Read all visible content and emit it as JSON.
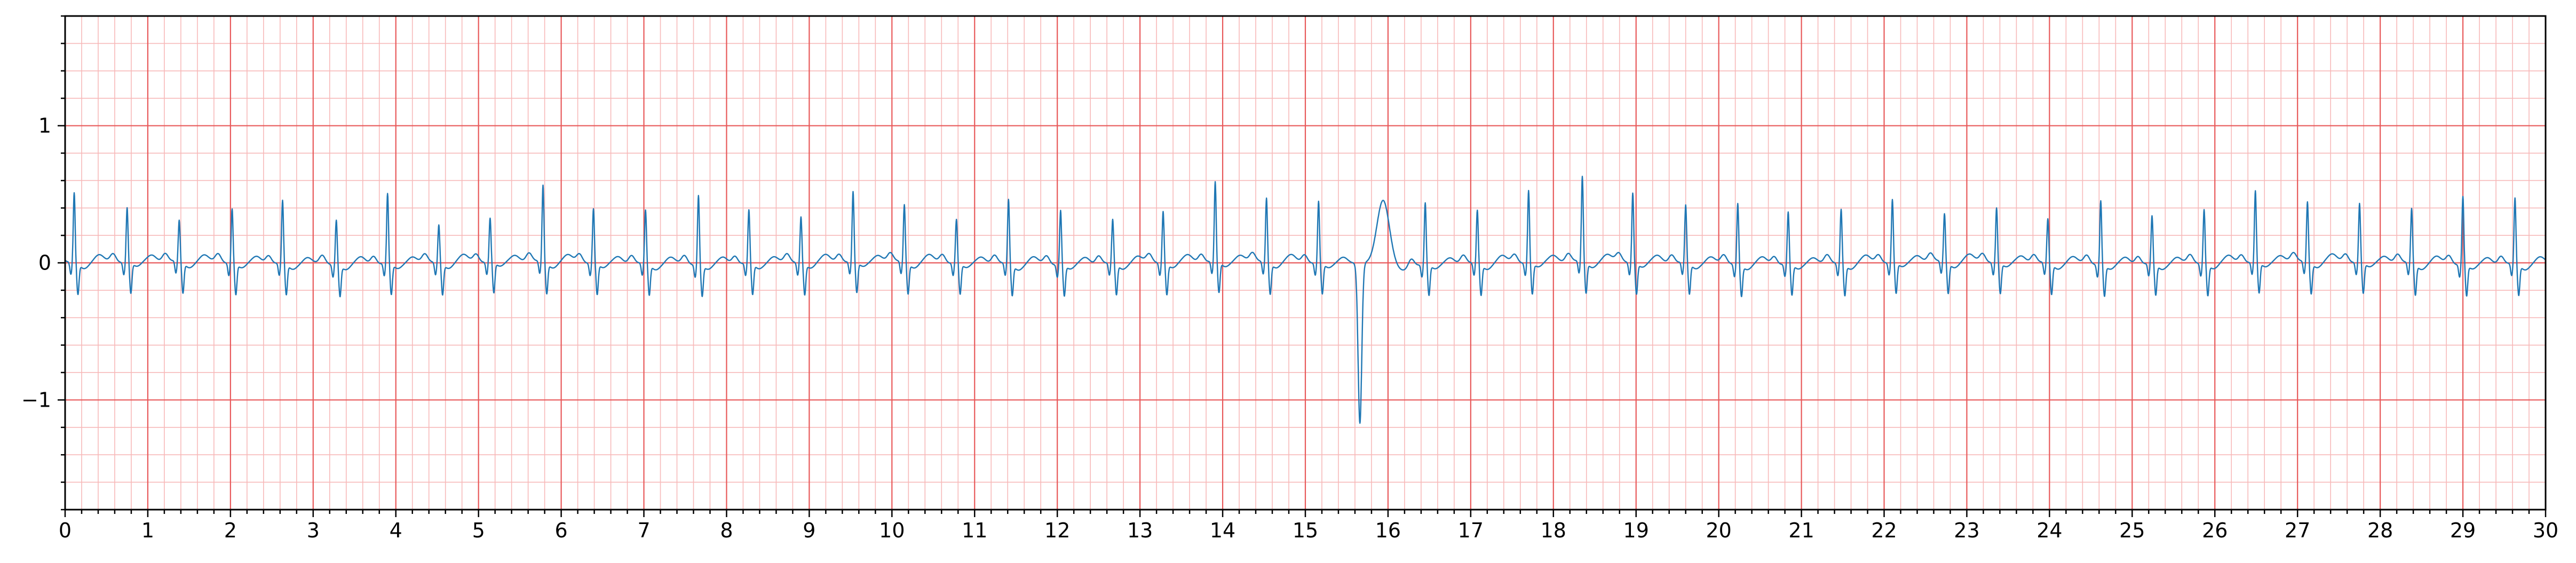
{
  "chart_data": {
    "type": "line",
    "title": "",
    "xlabel": "",
    "ylabel": "",
    "xlim": [
      0,
      30
    ],
    "ylim": [
      -1.8,
      1.8
    ],
    "x_ticks": [
      "0",
      "1",
      "2",
      "3",
      "4",
      "5",
      "6",
      "7",
      "8",
      "9",
      "10",
      "11",
      "12",
      "13",
      "14",
      "15",
      "16",
      "17",
      "18",
      "19",
      "20",
      "21",
      "22",
      "23",
      "24",
      "25",
      "26",
      "27",
      "28",
      "29",
      "30"
    ],
    "y_ticks": [
      {
        "value": 1,
        "label": "1"
      },
      {
        "value": 0,
        "label": "0"
      },
      {
        "value": -1,
        "label": "−1"
      }
    ],
    "grid": {
      "major": true,
      "minor": true,
      "major_step_x": 1,
      "minor_step_x": 0.2,
      "major_step_y": 1,
      "minor_step_y": 0.2
    },
    "series": [
      {
        "color": "#1f77b4",
        "beats": [
          {
            "t": 0.11,
            "amp": 0.51
          },
          {
            "t": 0.75,
            "amp": 0.4
          },
          {
            "t": 1.38,
            "amp": 0.3
          },
          {
            "t": 2.02,
            "amp": 0.4
          },
          {
            "t": 2.63,
            "amp": 0.46
          },
          {
            "t": 3.28,
            "amp": 0.33
          },
          {
            "t": 3.9,
            "amp": 0.51
          },
          {
            "t": 4.52,
            "amp": 0.28
          },
          {
            "t": 5.14,
            "amp": 0.32
          },
          {
            "t": 5.78,
            "amp": 0.56
          },
          {
            "t": 6.39,
            "amp": 0.4
          },
          {
            "t": 7.02,
            "amp": 0.39
          },
          {
            "t": 7.66,
            "amp": 0.51
          },
          {
            "t": 8.27,
            "amp": 0.39
          },
          {
            "t": 8.9,
            "amp": 0.34
          },
          {
            "t": 9.53,
            "amp": 0.51
          },
          {
            "t": 10.15,
            "amp": 0.42
          },
          {
            "t": 10.78,
            "amp": 0.32
          },
          {
            "t": 11.41,
            "amp": 0.47
          },
          {
            "t": 12.04,
            "amp": 0.4
          },
          {
            "t": 12.67,
            "amp": 0.32
          },
          {
            "t": 13.28,
            "amp": 0.38
          },
          {
            "t": 13.91,
            "amp": 0.58
          },
          {
            "t": 14.53,
            "amp": 0.47
          },
          {
            "t": 15.16,
            "amp": 0.45
          },
          {
            "t": 15.72,
            "amp": 0.47,
            "pvc": true,
            "min": -1.17
          },
          {
            "t": 16.45,
            "amp": 0.45
          },
          {
            "t": 17.08,
            "amp": 0.39
          },
          {
            "t": 17.7,
            "amp": 0.53
          },
          {
            "t": 18.35,
            "amp": 0.62
          },
          {
            "t": 18.96,
            "amp": 0.51
          },
          {
            "t": 19.6,
            "amp": 0.42
          },
          {
            "t": 20.23,
            "amp": 0.45
          },
          {
            "t": 20.84,
            "amp": 0.38
          },
          {
            "t": 21.48,
            "amp": 0.4
          },
          {
            "t": 22.1,
            "amp": 0.46
          },
          {
            "t": 22.73,
            "amp": 0.35
          },
          {
            "t": 23.36,
            "amp": 0.4
          },
          {
            "t": 23.98,
            "amp": 0.32
          },
          {
            "t": 24.62,
            "amp": 0.47
          },
          {
            "t": 25.24,
            "amp": 0.35
          },
          {
            "t": 25.87,
            "amp": 0.4
          },
          {
            "t": 26.49,
            "amp": 0.52
          },
          {
            "t": 27.12,
            "amp": 0.44
          },
          {
            "t": 27.75,
            "amp": 0.43
          },
          {
            "t": 28.38,
            "amp": 0.4
          },
          {
            "t": 29.0,
            "amp": 0.5
          },
          {
            "t": 29.63,
            "amp": 0.48
          }
        ]
      }
    ]
  }
}
